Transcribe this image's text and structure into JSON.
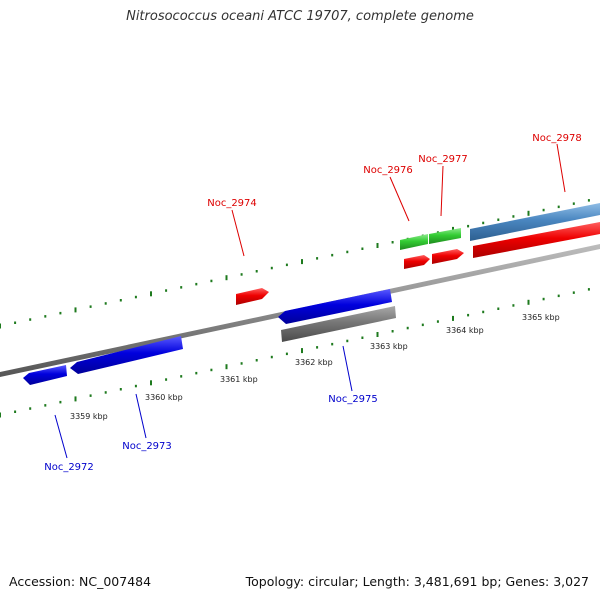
{
  "title": "Nitrosococcus oceani ATCC 19707, complete genome",
  "footer": {
    "accession": "Accession: NC_007484",
    "summary": "Topology: circular; Length: 3,481,691 bp; Genes: 3,027"
  },
  "tick_labels": [
    "3359 kbp",
    "3360 kbp",
    "3361 kbp",
    "3362 kbp",
    "3363 kbp",
    "3364 kbp",
    "3365 kbp"
  ],
  "gene_labels": {
    "forward": [
      "Noc_2974",
      "Noc_2976",
      "Noc_2977",
      "Noc_2978"
    ],
    "reverse": [
      "Noc_2972",
      "Noc_2973",
      "Noc_2975"
    ]
  },
  "colors": {
    "forward_strand": "#dd0000",
    "reverse_strand": "#0000cc",
    "rna_feature": "#33cc33",
    "blue_feature": "#4a86c0",
    "grey_feature": "#777777",
    "tick": "#1e7a1e",
    "backbone": "#8a8a8a"
  }
}
